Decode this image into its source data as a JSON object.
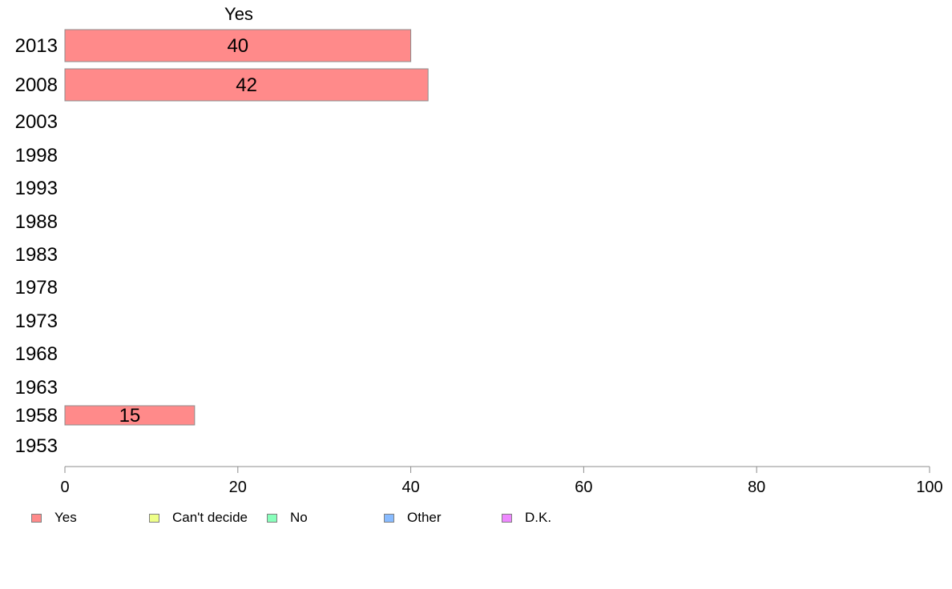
{
  "chart_data": {
    "type": "bar",
    "orientation": "horizontal",
    "stacked": true,
    "column_label": "Yes",
    "categories": [
      "2013",
      "2008",
      "2003",
      "1998",
      "1993",
      "1988",
      "1983",
      "1978",
      "1973",
      "1968",
      "1963",
      "1958",
      "1953"
    ],
    "series": [
      {
        "name": "Yes",
        "color": "#ff8a8a",
        "values": [
          40,
          42,
          null,
          null,
          null,
          null,
          null,
          null,
          null,
          null,
          null,
          15,
          null
        ]
      }
    ],
    "data_labels": [
      "40",
      "42",
      "",
      "",
      "",
      "",
      "",
      "",
      "",
      "",
      "",
      "15",
      ""
    ],
    "xlim": [
      0,
      100
    ],
    "xticks": [
      "0",
      "20",
      "40",
      "60",
      "80",
      "100"
    ],
    "grid": false,
    "legend_position": "bottom-left"
  },
  "legend": [
    {
      "label": "Yes",
      "color": "#ff8a8a"
    },
    {
      "label": "Can't decide",
      "color": "#eeff88"
    },
    {
      "label": "No",
      "color": "#88ffbb"
    },
    {
      "label": "Other",
      "color": "#88bbff"
    },
    {
      "label": "D.K.",
      "color": "#ee88ff"
    }
  ]
}
